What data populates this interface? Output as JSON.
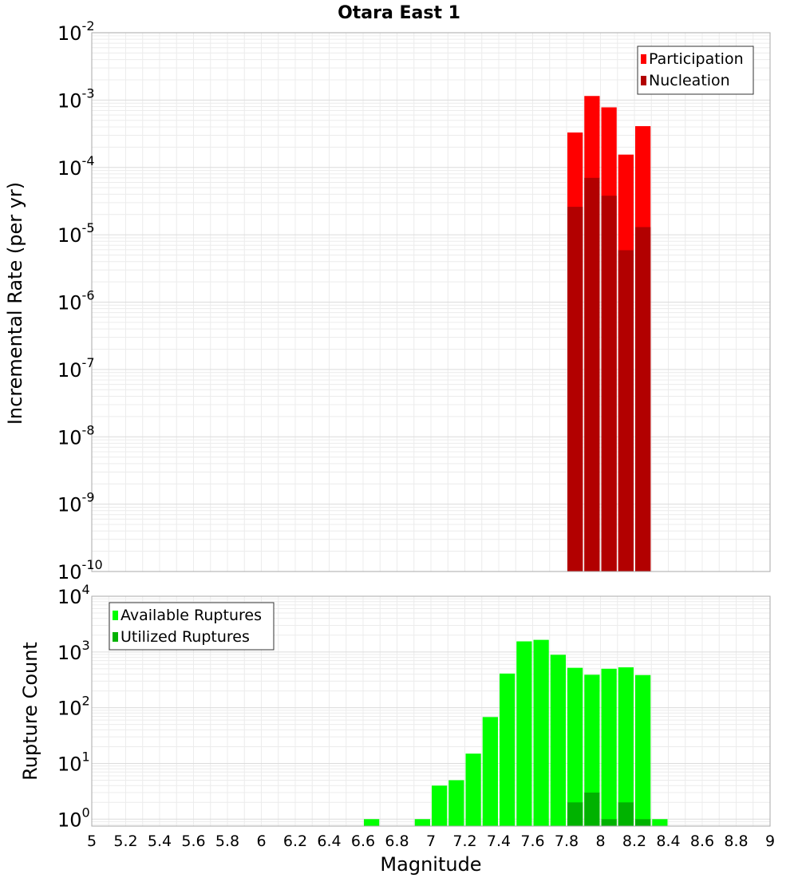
{
  "title": "Otara East 1",
  "xlabel": "Magnitude",
  "x_ticks": [
    "5",
    "5.2",
    "5.4",
    "5.6",
    "5.8",
    "6",
    "6.2",
    "6.4",
    "6.6",
    "6.8",
    "7",
    "7.2",
    "7.4",
    "7.6",
    "7.8",
    "8",
    "8.2",
    "8.4",
    "8.6",
    "8.8",
    "9"
  ],
  "chart_data": [
    {
      "type": "bar",
      "ylabel": "Incremental Rate (per yr)",
      "yscale": "log",
      "xlim": [
        5,
        9
      ],
      "ylim": [
        1e-10,
        0.01
      ],
      "y_tick_exponents": [
        "-10",
        "-9",
        "-8",
        "-7",
        "-6",
        "-5",
        "-4",
        "-3",
        "-2"
      ],
      "grid": true,
      "legend_position": "top-right",
      "bar_width": 0.1,
      "series": [
        {
          "name": "Participation",
          "color": "#ff0000",
          "x": [
            7.85,
            7.95,
            8.05,
            8.15,
            8.25
          ],
          "values": [
            0.00033,
            0.00115,
            0.00078,
            0.000155,
            0.00041
          ]
        },
        {
          "name": "Nucleation",
          "color": "#b20000",
          "x": [
            7.85,
            7.95,
            8.05,
            8.15,
            8.25
          ],
          "values": [
            2.6e-05,
            7e-05,
            3.8e-05,
            5.9e-06,
            1.3e-05
          ]
        }
      ]
    },
    {
      "type": "bar",
      "ylabel": "Rupture Count",
      "yscale": "log",
      "xlim": [
        5,
        9
      ],
      "ylim": [
        0.75,
        10000
      ],
      "y_tick_exponents": [
        "0",
        "1",
        "2",
        "3",
        "4"
      ],
      "grid": true,
      "legend_position": "top-left",
      "bar_width": 0.1,
      "series": [
        {
          "name": "Available Ruptures",
          "color": "#00ff00",
          "x": [
            6.65,
            6.95,
            7.05,
            7.15,
            7.25,
            7.35,
            7.45,
            7.55,
            7.65,
            7.75,
            7.85,
            7.95,
            8.05,
            8.15,
            8.25,
            8.35
          ],
          "values": [
            1,
            1,
            4,
            5,
            15,
            68,
            410,
            1550,
            1650,
            890,
            520,
            390,
            500,
            530,
            385,
            1
          ]
        },
        {
          "name": "Utilized Ruptures",
          "color": "#00b200",
          "x": [
            7.85,
            7.95,
            8.05,
            8.15,
            8.25
          ],
          "values": [
            2,
            3,
            1,
            2,
            1
          ]
        }
      ]
    }
  ]
}
